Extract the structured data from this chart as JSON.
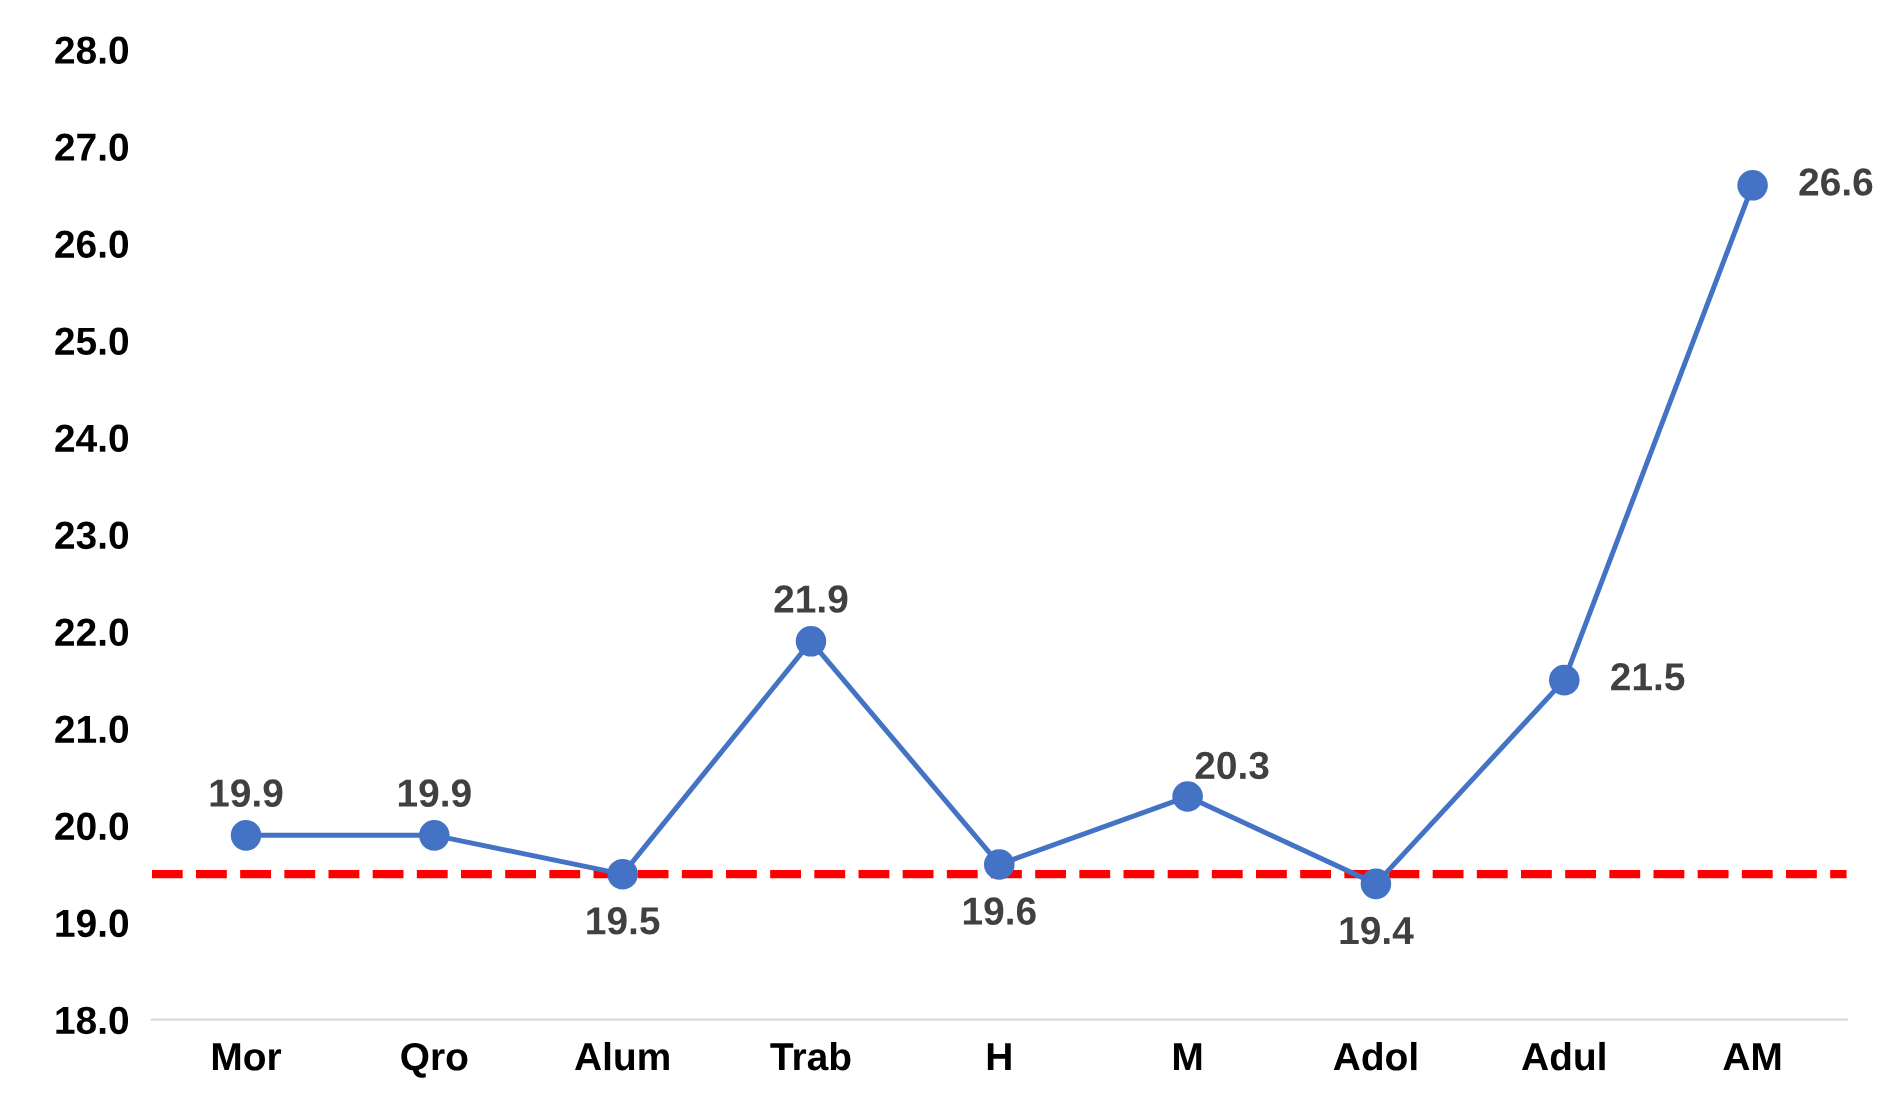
{
  "chart_data": {
    "type": "line",
    "categories": [
      "Mor",
      "Qro",
      "Alum",
      "Trab",
      "H",
      "M",
      "Adol",
      "Adul",
      "AM"
    ],
    "series": [
      {
        "color": "#4472c4",
        "values": [
          19.9,
          19.9,
          19.5,
          21.9,
          19.6,
          20.3,
          19.4,
          21.5,
          26.6
        ]
      }
    ],
    "ylim": [
      18,
      28
    ],
    "yticks": [
      {
        "value": 18,
        "label": "18.0"
      },
      {
        "value": 19,
        "label": "19.0"
      },
      {
        "value": 20,
        "label": "20.0"
      },
      {
        "value": 21,
        "label": "21.0"
      },
      {
        "value": 22,
        "label": "22.0"
      },
      {
        "value": 23,
        "label": "23.0"
      },
      {
        "value": 24,
        "label": "24.0"
      },
      {
        "value": 25,
        "label": "25.0"
      },
      {
        "value": 26,
        "label": "26.0"
      },
      {
        "value": 27,
        "label": "27.0"
      },
      {
        "value": 28,
        "label": "28.0"
      }
    ],
    "ref_lines": [
      {
        "axis": "y",
        "value": 19.5,
        "color": "#ff0000",
        "line_style": "dashed"
      }
    ],
    "marker": "circle",
    "line_style": "solid",
    "data_labels": true,
    "grid": false,
    "legend": false
  }
}
